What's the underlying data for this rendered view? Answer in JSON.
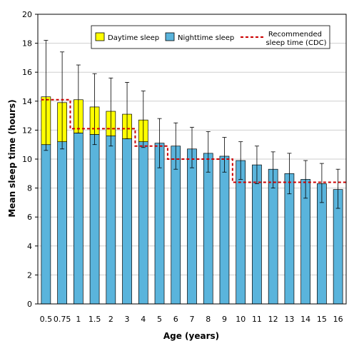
{
  "chart_data": {
    "type": "bar",
    "stacked": true,
    "xlabel": "Age (years)",
    "ylabel": "Mean sleep time (hours)",
    "ylim": [
      0,
      20
    ],
    "yticks": [
      0,
      2,
      4,
      6,
      8,
      10,
      12,
      14,
      16,
      18,
      20
    ],
    "grid": "horizontal",
    "legend_position": "top-right",
    "categories": [
      "0.5",
      "0.75",
      "1",
      "1.5",
      "2",
      "3",
      "4",
      "5",
      "6",
      "7",
      "8",
      "9",
      "10",
      "11",
      "12",
      "13",
      "14",
      "15",
      "16"
    ],
    "series": [
      {
        "name": "Nighttime sleep",
        "color": "#5ab4dc",
        "values": [
          11.0,
          11.2,
          11.8,
          11.7,
          11.6,
          11.4,
          11.2,
          11.1,
          10.9,
          10.7,
          10.4,
          10.2,
          9.9,
          9.6,
          9.3,
          9.0,
          8.6,
          8.3,
          7.9
        ]
      },
      {
        "name": "Daytime sleep",
        "color": "#ffff00",
        "values": [
          3.3,
          2.7,
          2.3,
          1.9,
          1.7,
          1.7,
          1.5,
          0,
          0,
          0,
          0,
          0,
          0,
          0,
          0,
          0,
          0,
          0,
          0
        ]
      }
    ],
    "error_bars": {
      "upper": [
        18.2,
        17.4,
        16.5,
        15.9,
        15.6,
        15.3,
        14.7,
        12.8,
        12.5,
        12.2,
        11.9,
        11.5,
        11.2,
        10.9,
        10.5,
        10.4,
        9.9,
        9.7,
        9.3
      ],
      "lower": [
        10.6,
        10.7,
        11.8,
        11.0,
        10.9,
        11.4,
        10.8,
        9.4,
        9.3,
        9.4,
        9.1,
        9.1,
        8.6,
        8.3,
        8.0,
        7.6,
        7.3,
        7.0,
        6.6
      ]
    },
    "recommended": {
      "name": "Recommended sleep time (CDC)",
      "name_lines": [
        "Recommended",
        "sleep time (CDC)"
      ],
      "color": "#cc0000",
      "style": "dashed",
      "segments": [
        {
          "from": "0.5",
          "to": "0.75",
          "value": 14.1
        },
        {
          "from": "1",
          "to": "3",
          "value": 12.1
        },
        {
          "from": "4",
          "to": "5",
          "value": 10.9
        },
        {
          "from": "6",
          "to": "9",
          "value": 10.0
        },
        {
          "from": "10",
          "to": "16",
          "value": 8.4
        }
      ]
    }
  }
}
